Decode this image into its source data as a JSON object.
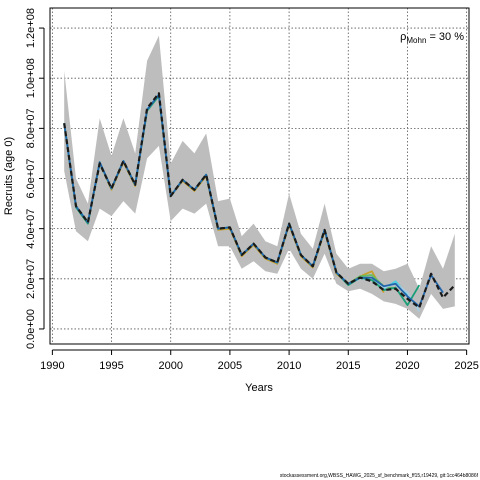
{
  "chart_data": {
    "type": "line",
    "title": "",
    "xlabel": "Years",
    "ylabel": "Recruits (age 0)",
    "xlim": [
      1989.8,
      2025.2
    ],
    "ylim": [
      -6000000,
      128000000
    ],
    "x_ticks": [
      1990,
      1995,
      2000,
      2005,
      2010,
      2015,
      2020,
      2025
    ],
    "y_ticks": [
      0,
      20000000,
      40000000,
      60000000,
      80000000,
      100000000,
      120000000
    ],
    "y_tick_labels": [
      "0.0e+00",
      "2.0e+07",
      "4.0e+07",
      "6.0e+07",
      "8.0e+07",
      "1.0e+08",
      "1.2e+08"
    ],
    "grid": true,
    "annotation": {
      "rho_symbol": "ρ",
      "rho_subscript": "Mohn",
      "rho_value": " = 30 %"
    },
    "confidence_band": {
      "x": [
        1991,
        1992,
        1993,
        1994,
        1995,
        1996,
        1997,
        1998,
        1999,
        2000,
        2001,
        2002,
        2003,
        2004,
        2005,
        2006,
        2007,
        2008,
        2009,
        2010,
        2011,
        2012,
        2013,
        2014,
        2015,
        2016,
        2017,
        2018,
        2019,
        2020,
        2021,
        2022,
        2023,
        2024
      ],
      "lower": [
        63000000,
        39000000,
        35000000,
        48000000,
        45000000,
        51000000,
        46000000,
        68000000,
        73000000,
        43000000,
        48000000,
        46000000,
        50000000,
        33000000,
        33000000,
        24000000,
        27000000,
        23000000,
        22000000,
        32000000,
        24000000,
        20000000,
        30000000,
        18000000,
        15000000,
        16000000,
        14000000,
        11000000,
        10000000,
        8000000,
        4000000,
        14000000,
        8000000,
        9000000
      ],
      "upper": [
        103000000,
        60000000,
        50000000,
        84000000,
        69000000,
        84000000,
        70000000,
        107000000,
        117000000,
        66000000,
        75000000,
        70000000,
        78000000,
        51000000,
        52000000,
        37000000,
        42000000,
        35000000,
        33000000,
        54000000,
        38000000,
        32000000,
        50000000,
        30000000,
        24000000,
        26000000,
        26000000,
        23000000,
        24000000,
        26000000,
        16000000,
        33000000,
        24000000,
        38000000
      ]
    },
    "series": [
      {
        "color": "#1a1a1a",
        "x": [
          1991,
          1992,
          1993,
          1994,
          1995,
          1996,
          1997,
          1998,
          1999,
          2000,
          2001,
          2002,
          2003,
          2004,
          2005,
          2006,
          2007,
          2008,
          2009,
          2010,
          2011,
          2012,
          2013,
          2014,
          2015,
          2016,
          2017,
          2018,
          2019,
          2020,
          2021,
          2022,
          2023,
          2024
        ],
        "values": [
          82000000,
          49000000,
          42500000,
          66000000,
          56000000,
          67000000,
          57500000,
          88000000,
          94000000,
          53000000,
          59500000,
          55500000,
          61500000,
          40000000,
          40500000,
          29500000,
          34000000,
          28500000,
          26500000,
          42000000,
          29500000,
          25000000,
          39500000,
          22500000,
          18000000,
          20500000,
          19000000,
          15500000,
          16000000,
          12000000,
          8500000,
          22000000,
          12500000,
          17500000
        ]
      },
      {
        "color": "#2166ac",
        "x": [
          1991,
          1992,
          1993,
          1994,
          1995,
          1996,
          1997,
          1998,
          1999,
          2000,
          2001,
          2002,
          2003,
          2004,
          2005,
          2006,
          2007,
          2008,
          2009,
          2010,
          2011,
          2012,
          2013,
          2014,
          2015,
          2016,
          2017,
          2018,
          2019,
          2020,
          2021,
          2022,
          2023
        ],
        "values": [
          82000000,
          49000000,
          42500000,
          66500000,
          56000000,
          67000000,
          57500000,
          87500000,
          93500000,
          53000000,
          59500000,
          55500000,
          61500000,
          40000000,
          40500000,
          29500000,
          34000000,
          28500000,
          26500000,
          42000000,
          29500000,
          25000000,
          39500000,
          22500000,
          18000000,
          20500000,
          20500000,
          17000000,
          18000000,
          13000000,
          9000000,
          21500000,
          14500000
        ]
      },
      {
        "color": "#1b9e77",
        "x": [
          1991,
          1992,
          1993,
          1994,
          1995,
          1996,
          1997,
          1998,
          1999,
          2000,
          2001,
          2002,
          2003,
          2004,
          2005,
          2006,
          2007,
          2008,
          2009,
          2010,
          2011,
          2012,
          2013,
          2014,
          2015,
          2016,
          2017,
          2018,
          2019,
          2020,
          2021
        ],
        "values": [
          82000000,
          48500000,
          42000000,
          66500000,
          56000000,
          67000000,
          57500000,
          87000000,
          93000000,
          53000000,
          59500000,
          55500000,
          61500000,
          40000000,
          40500000,
          29500000,
          34000000,
          28500000,
          26500000,
          42000000,
          29500000,
          25000000,
          39500000,
          22500000,
          17500000,
          20500000,
          19500000,
          15500000,
          16500000,
          9500000,
          17500000
        ]
      },
      {
        "color": "#a6cee3",
        "x": [
          1991,
          1992,
          1993,
          1994,
          1995,
          1996,
          1997,
          1998,
          1999,
          2000,
          2001,
          2002,
          2003,
          2004,
          2005,
          2006,
          2007,
          2008,
          2009,
          2010,
          2011,
          2012,
          2013,
          2014,
          2015,
          2016,
          2017,
          2018,
          2019,
          2020,
          2021
        ],
        "values": [
          82000000,
          49000000,
          42500000,
          66000000,
          56000000,
          67000000,
          57500000,
          88000000,
          93500000,
          53000000,
          59500000,
          55500000,
          61500000,
          40000000,
          40500000,
          29500000,
          34000000,
          28500000,
          26500000,
          42000000,
          29500000,
          25000000,
          39500000,
          22500000,
          18000000,
          20000000,
          19500000,
          16500000,
          18000000,
          14500000,
          7000000
        ]
      },
      {
        "color": "#4dd0e1",
        "x": [
          1991,
          1992,
          1993,
          1994,
          1995,
          1996,
          1997,
          1998,
          1999,
          2000,
          2001,
          2002,
          2003,
          2004,
          2005,
          2006,
          2007,
          2008,
          2009,
          2010,
          2011,
          2012,
          2013,
          2014,
          2015,
          2016,
          2017,
          2018,
          2019,
          2020
        ],
        "values": [
          82000000,
          49000000,
          42500000,
          66000000,
          56000000,
          67000000,
          57500000,
          87500000,
          93500000,
          53000000,
          59500000,
          55500000,
          61500000,
          40000000,
          40500000,
          29500000,
          34000000,
          28500000,
          26500000,
          42000000,
          29500000,
          25000000,
          39500000,
          22500000,
          18000000,
          20500000,
          19500000,
          16000000,
          19000000,
          13500000
        ]
      },
      {
        "color": "#66bd63",
        "x": [
          1991,
          1992,
          1993,
          1994,
          1995,
          1996,
          1997,
          1998,
          1999,
          2000,
          2001,
          2002,
          2003,
          2004,
          2005,
          2006,
          2007,
          2008,
          2009,
          2010,
          2011,
          2012,
          2013,
          2014,
          2015,
          2016,
          2017,
          2018,
          2019
        ],
        "values": [
          82000000,
          49000000,
          42500000,
          66000000,
          56000000,
          67000000,
          57500000,
          87500000,
          93500000,
          53000000,
          59500000,
          55500000,
          61500000,
          40000000,
          40500000,
          29500000,
          34000000,
          28500000,
          26500000,
          42000000,
          29500000,
          25000000,
          39500000,
          22500000,
          18000000,
          21000000,
          21500000,
          17000000,
          16000000
        ]
      },
      {
        "color": "#c8a02a",
        "x": [
          1991,
          1992,
          1993,
          1994,
          1995,
          1996,
          1997,
          1998,
          1999,
          2000,
          2001,
          2002,
          2003,
          2004,
          2005,
          2006,
          2007,
          2008,
          2009,
          2010,
          2011,
          2012,
          2013,
          2014,
          2015,
          2016,
          2017,
          2018
        ],
        "values": [
          82000000,
          49000000,
          42000000,
          66000000,
          55500000,
          66500000,
          57000000,
          87500000,
          93000000,
          53000000,
          59000000,
          55000000,
          61000000,
          39500000,
          40000000,
          29000000,
          33500000,
          28000000,
          26000000,
          41500000,
          29000000,
          24500000,
          39000000,
          22000000,
          18000000,
          21000000,
          23000000,
          14500000
        ]
      }
    ]
  },
  "footer": {
    "credit": "stockassessment.org,WBSS_HAWG_2025_sf_benchmark_ff15,r19429, git:1cc464b8086f"
  }
}
